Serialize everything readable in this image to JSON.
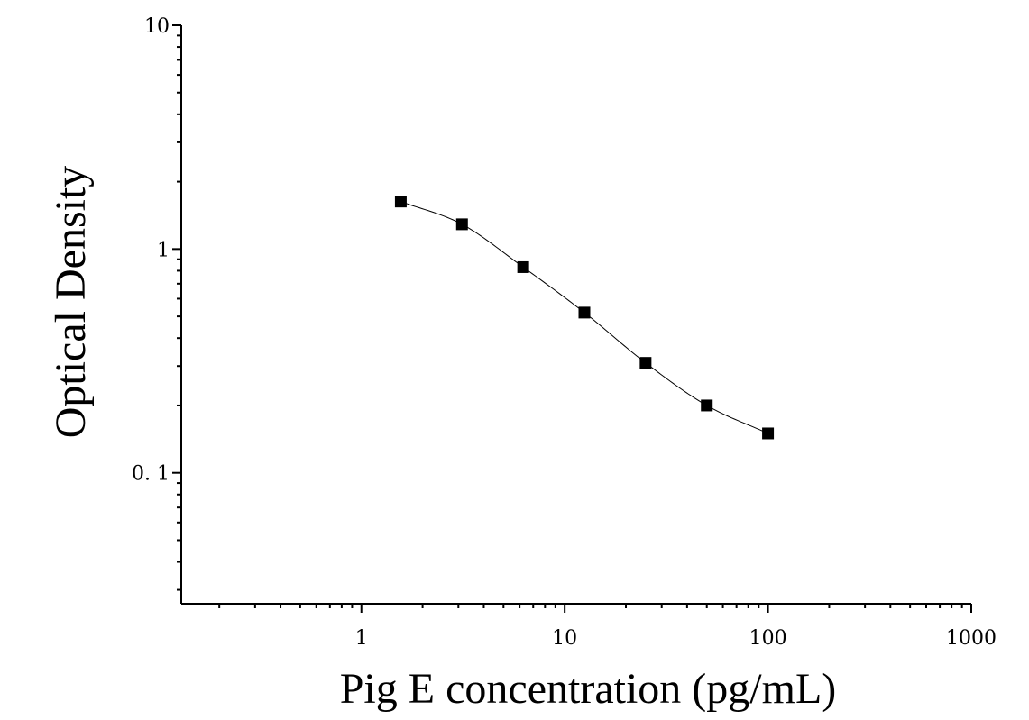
{
  "chart_data": {
    "type": "scatter",
    "title": "",
    "xlabel": "Pig E concentration (pg/mL)",
    "ylabel": "Optical Density",
    "x_scale": "log",
    "y_scale": "log",
    "xlim": [
      0.13,
      1000
    ],
    "ylim": [
      0.026,
      10
    ],
    "x_ticks": [
      1,
      10,
      100,
      1000
    ],
    "x_tick_labels": [
      "1",
      "10",
      "100",
      "1000"
    ],
    "y_ticks": [
      0.1,
      1,
      10
    ],
    "y_tick_labels": [
      "0. 1",
      "1",
      "10"
    ],
    "grid": false,
    "legend": "none",
    "series": [
      {
        "marker": "square",
        "color": "#000000",
        "x": [
          1.5625,
          3.125,
          6.25,
          12.5,
          25,
          50,
          100
        ],
        "y": [
          1.63,
          1.29,
          0.83,
          0.52,
          0.31,
          0.2,
          0.15
        ]
      }
    ],
    "fit_curve": {
      "color": "#000000",
      "style": "smooth line through points"
    }
  }
}
